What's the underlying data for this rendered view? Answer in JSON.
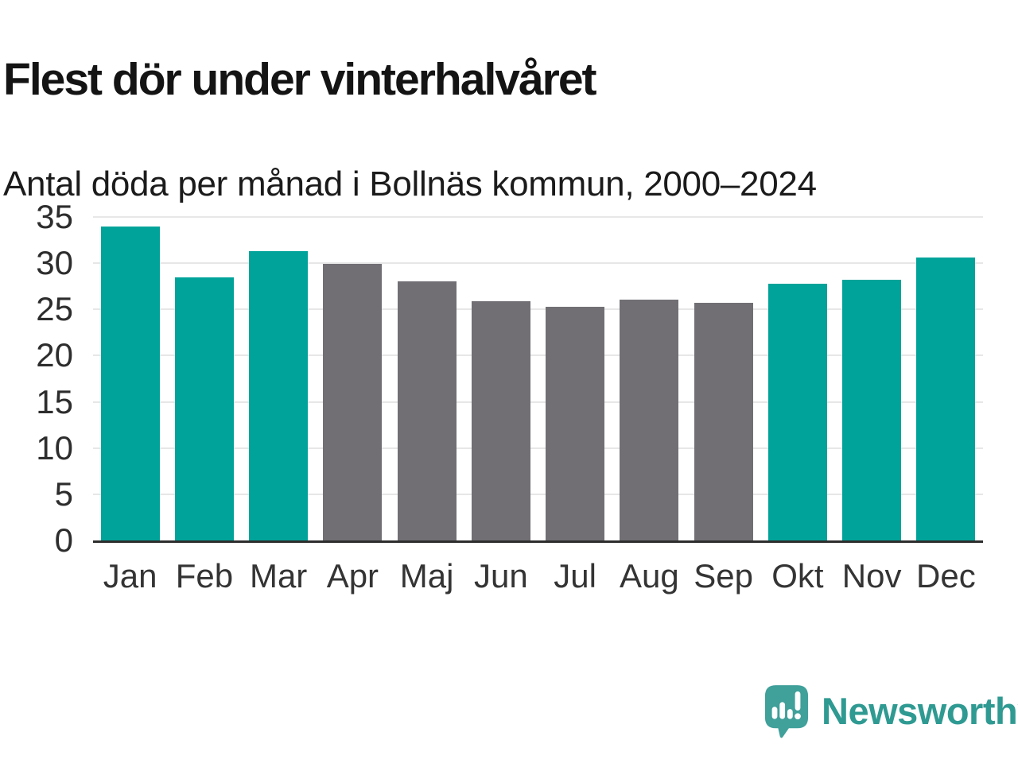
{
  "header": {
    "title": "Flest dör under vinterhalvåret",
    "subtitle": "Antal döda per månad i Bollnäs kommun, 2000–2024"
  },
  "footer": {
    "brand_name": "Newsworthy",
    "brand_color": "#2f9a92",
    "logo_icon_color": "#40a09a"
  },
  "chart_data": {
    "type": "bar",
    "title": "Flest dör under vinterhalvåret",
    "subtitle": "Antal döda per månad i Bollnäs kommun, 2000–2024",
    "categories": [
      "Jan",
      "Feb",
      "Mar",
      "Apr",
      "Maj",
      "Jun",
      "Jul",
      "Aug",
      "Sep",
      "Okt",
      "Nov",
      "Dec"
    ],
    "values": [
      34,
      28.5,
      31.3,
      29.9,
      28,
      25.9,
      25.3,
      26.1,
      25.7,
      27.8,
      28.2,
      30.6
    ],
    "season": [
      "winter",
      "winter",
      "winter",
      "summer",
      "summer",
      "summer",
      "summer",
      "summer",
      "summer",
      "winter",
      "winter",
      "winter"
    ],
    "colors": {
      "winter": "#00a39a",
      "summer": "#716f74"
    },
    "ylim": [
      0,
      35
    ],
    "yticks": [
      0,
      5,
      10,
      15,
      20,
      25,
      30,
      35
    ],
    "xlabel": "",
    "ylabel": "",
    "grid": "horizontal",
    "gridline_color": "#e7e7e7",
    "axis_color": "#2d2d2d",
    "tick_label_color": "#2d2d2d",
    "legend": "none"
  }
}
